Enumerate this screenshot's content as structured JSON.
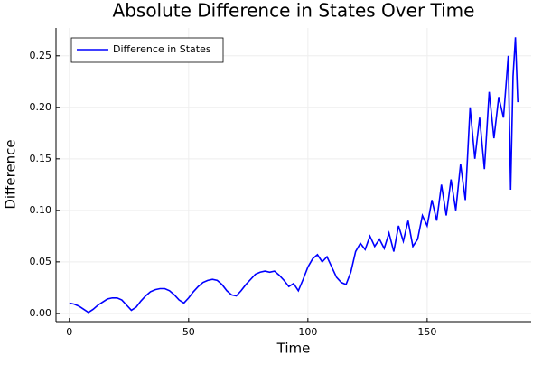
{
  "chart_data": {
    "type": "line",
    "title": "Absolute Difference in States Over Time",
    "x_label": "Time",
    "y_label": "Difference",
    "x": [
      0,
      2,
      4,
      6,
      8,
      10,
      12,
      14,
      16,
      18,
      20,
      22,
      24,
      26,
      28,
      30,
      32,
      34,
      36,
      38,
      40,
      42,
      44,
      46,
      48,
      50,
      52,
      54,
      56,
      58,
      60,
      62,
      64,
      66,
      68,
      70,
      72,
      74,
      76,
      78,
      80,
      82,
      84,
      86,
      88,
      90,
      92,
      94,
      96,
      98,
      100,
      102,
      104,
      106,
      108,
      110,
      112,
      114,
      116,
      118,
      120,
      122,
      124,
      126,
      128,
      130,
      132,
      134,
      136,
      138,
      140,
      142,
      144,
      146,
      148,
      150,
      152,
      154,
      156,
      158,
      160,
      162,
      164,
      166,
      168,
      170,
      172,
      174,
      176,
      178,
      180,
      182,
      184,
      185,
      186,
      187,
      188
    ],
    "series": [
      {
        "name": "Difference in States",
        "color": "#0000ff",
        "values": [
          0.01,
          0.009,
          0.007,
          0.004,
          0.001,
          0.004,
          0.008,
          0.011,
          0.014,
          0.015,
          0.015,
          0.013,
          0.008,
          0.003,
          0.006,
          0.012,
          0.017,
          0.021,
          0.023,
          0.024,
          0.024,
          0.022,
          0.018,
          0.013,
          0.01,
          0.015,
          0.021,
          0.026,
          0.03,
          0.032,
          0.033,
          0.032,
          0.028,
          0.022,
          0.018,
          0.017,
          0.022,
          0.028,
          0.033,
          0.038,
          0.04,
          0.041,
          0.04,
          0.041,
          0.037,
          0.032,
          0.026,
          0.029,
          0.022,
          0.033,
          0.045,
          0.053,
          0.057,
          0.05,
          0.055,
          0.045,
          0.035,
          0.03,
          0.028,
          0.04,
          0.06,
          0.068,
          0.062,
          0.075,
          0.065,
          0.072,
          0.063,
          0.078,
          0.06,
          0.085,
          0.07,
          0.09,
          0.065,
          0.072,
          0.095,
          0.085,
          0.11,
          0.09,
          0.125,
          0.095,
          0.13,
          0.1,
          0.145,
          0.11,
          0.2,
          0.15,
          0.19,
          0.14,
          0.215,
          0.17,
          0.21,
          0.19,
          0.25,
          0.12,
          0.23,
          0.268,
          0.205
        ]
      }
    ],
    "xlim": [
      -5.6,
      193.6
    ],
    "ylim": [
      -0.008,
      0.277
    ],
    "xticks": [
      0,
      50,
      100,
      150
    ],
    "yticks": [
      {
        "value": 0,
        "label": "0.00"
      },
      {
        "value": 0.05,
        "label": "0.05"
      },
      {
        "value": 0.1,
        "label": "0.10"
      },
      {
        "value": 0.15,
        "label": "0.15"
      },
      {
        "value": 0.2,
        "label": "0.20"
      },
      {
        "value": 0.25,
        "label": "0.25"
      }
    ],
    "grid": true,
    "legend": "top-left"
  }
}
